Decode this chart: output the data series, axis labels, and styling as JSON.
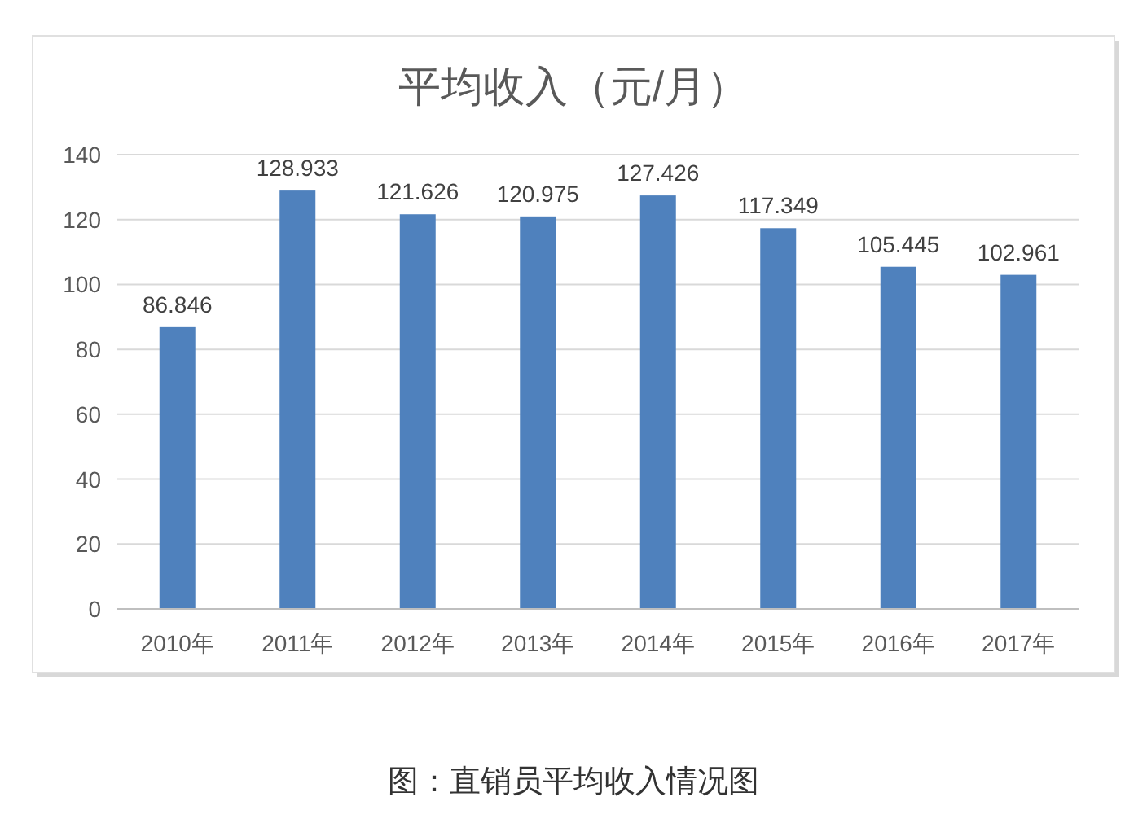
{
  "chart_data": {
    "type": "bar",
    "title": "平均收入（元/月）",
    "categories": [
      "2010年",
      "2011年",
      "2012年",
      "2013年",
      "2014年",
      "2015年",
      "2016年",
      "2017年"
    ],
    "values": [
      86.846,
      128.933,
      121.626,
      120.975,
      127.426,
      117.349,
      105.445,
      102.961
    ],
    "color": "#4f81bd",
    "ylim": [
      0,
      140
    ],
    "yticks": [
      0,
      20,
      40,
      60,
      80,
      100,
      120,
      140
    ],
    "grid": "y",
    "data_labels": true,
    "annotations": [
      "图：直销员平均收入情况图"
    ]
  }
}
